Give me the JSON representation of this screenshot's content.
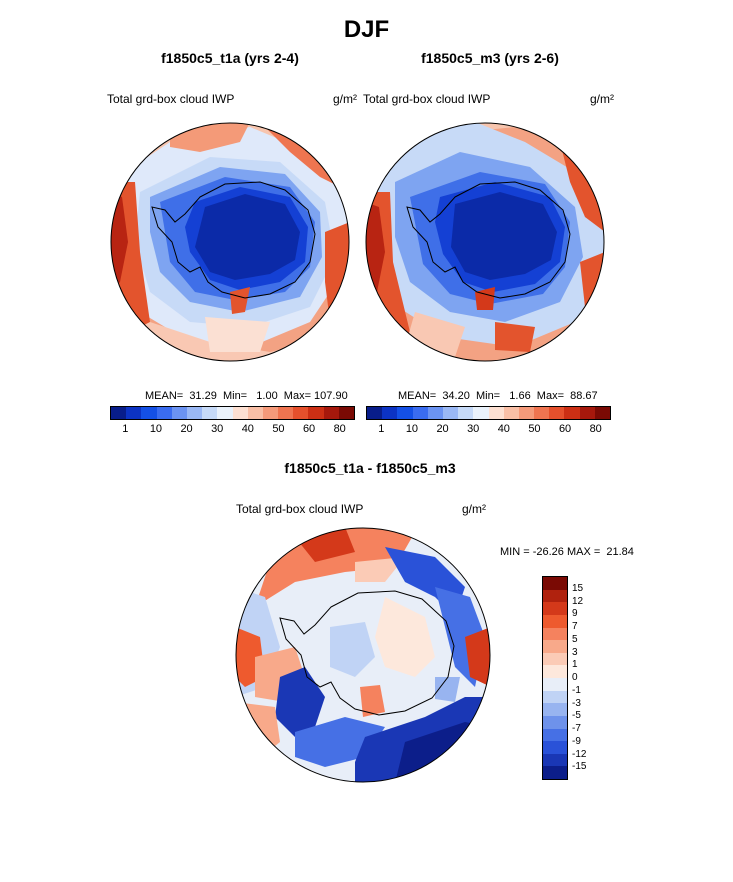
{
  "title": "DJF",
  "panels": [
    {
      "title": "f1850c5_t1a (yrs 2-4)",
      "variable": "Total grd-box cloud IWP",
      "units": "g/m²",
      "stats": "MEAN=  31.29  Min=   1.00  Max= 107.90"
    },
    {
      "title": "f1850c5_m3 (yrs 2-6)",
      "variable": "Total grd-box cloud IWP",
      "units": "g/m²",
      "stats": "MEAN=  34.20  Min=   1.66  Max=  88.67"
    }
  ],
  "diff_panel": {
    "title": "f1850c5_t1a - f1850c5_m3",
    "variable": "Total grd-box cloud IWP",
    "units": "g/m²",
    "minmax": "MIN = -26.26 MAX =  21.84"
  },
  "colorbar_main": {
    "colors": [
      "#081d8a",
      "#0c33c4",
      "#1450e6",
      "#3a6cf0",
      "#6b93f2",
      "#9ab8f5",
      "#c6daf8",
      "#eaf2fb",
      "#fde0d2",
      "#f9bfa6",
      "#f59a7a",
      "#ef7450",
      "#e5502c",
      "#cc2f14",
      "#a6180c",
      "#7a0a04"
    ],
    "ticks": [
      "1",
      "10",
      "20",
      "30",
      "40",
      "50",
      "60",
      "80"
    ]
  },
  "colorbar_diff": {
    "colors": [
      "#7a0a04",
      "#b0220e",
      "#d4391a",
      "#ee5a2e",
      "#f5825e",
      "#f8a98a",
      "#fbcbb6",
      "#fde8dc",
      "#e8eef8",
      "#c0d3f5",
      "#98b4f0",
      "#6e92eb",
      "#4670e5",
      "#2a52d8",
      "#1a37b5",
      "#0c1e8a"
    ],
    "ticks": [
      "15",
      "12",
      "9",
      "7",
      "5",
      "3",
      "1",
      "0",
      "-1",
      "-3",
      "-5",
      "-7",
      "-9",
      "-12",
      "-15"
    ]
  }
}
